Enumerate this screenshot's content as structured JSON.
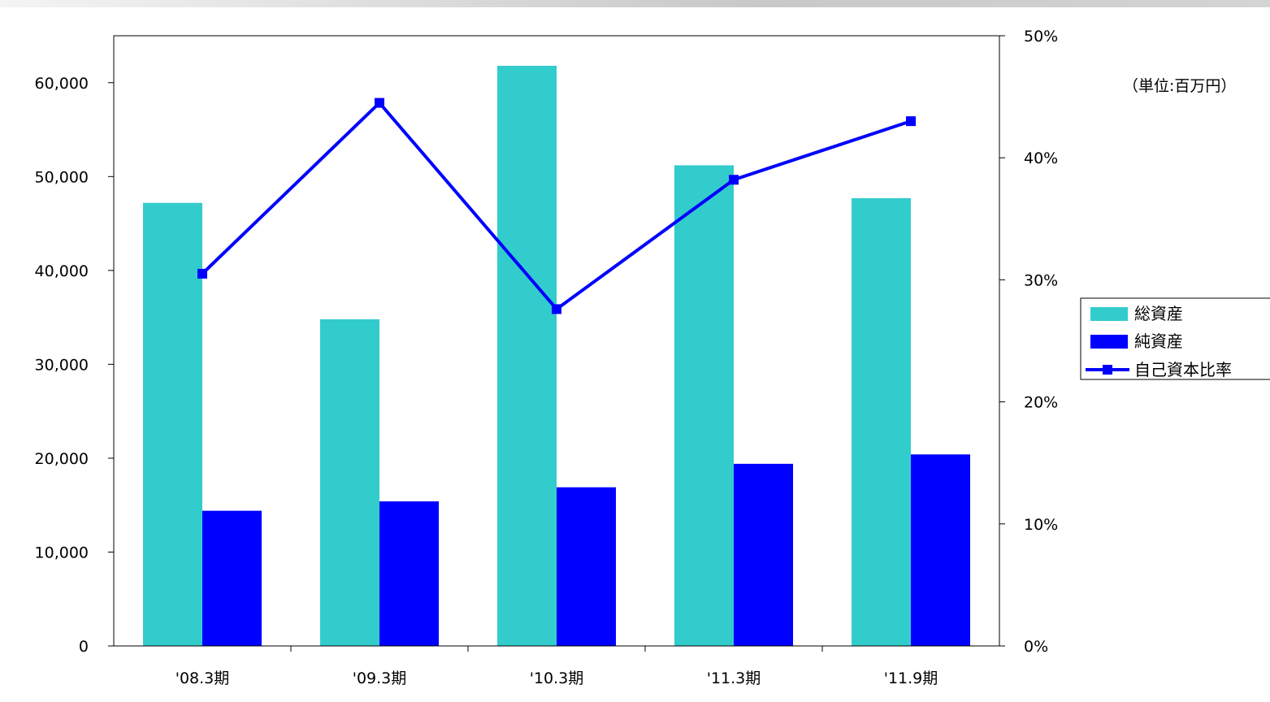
{
  "chart_data": {
    "type": "bar",
    "unit_label": "（単位:百万円）",
    "categories": [
      "'08.3期",
      "'09.3期",
      "'10.3期",
      "'11.3期",
      "'11.9期"
    ],
    "series": [
      {
        "name": "総資産",
        "kind": "bar",
        "axis": "left",
        "color": "#33CCCC",
        "values": [
          47200,
          34800,
          61800,
          51200,
          47700
        ]
      },
      {
        "name": "純資産",
        "kind": "bar",
        "axis": "left",
        "color": "#0000FF",
        "values": [
          14400,
          15400,
          16900,
          19400,
          20400
        ]
      },
      {
        "name": "自己資本比率",
        "kind": "line",
        "axis": "right",
        "color": "#0000FF",
        "values": [
          30.5,
          44.5,
          27.6,
          38.2,
          43.0
        ]
      }
    ],
    "y_left": {
      "min": 0,
      "max": 65000,
      "ticks": [
        0,
        10000,
        20000,
        30000,
        40000,
        50000,
        60000
      ],
      "tick_labels": [
        "0",
        "10,000",
        "20,000",
        "30,000",
        "40,000",
        "50,000",
        "60,000"
      ]
    },
    "y_right": {
      "min": 0,
      "max": 50,
      "ticks": [
        0,
        10,
        20,
        30,
        40,
        50
      ],
      "tick_labels": [
        "0%",
        "10%",
        "20%",
        "30%",
        "40%",
        "50%"
      ]
    },
    "grid": false,
    "legend_position": "right"
  }
}
